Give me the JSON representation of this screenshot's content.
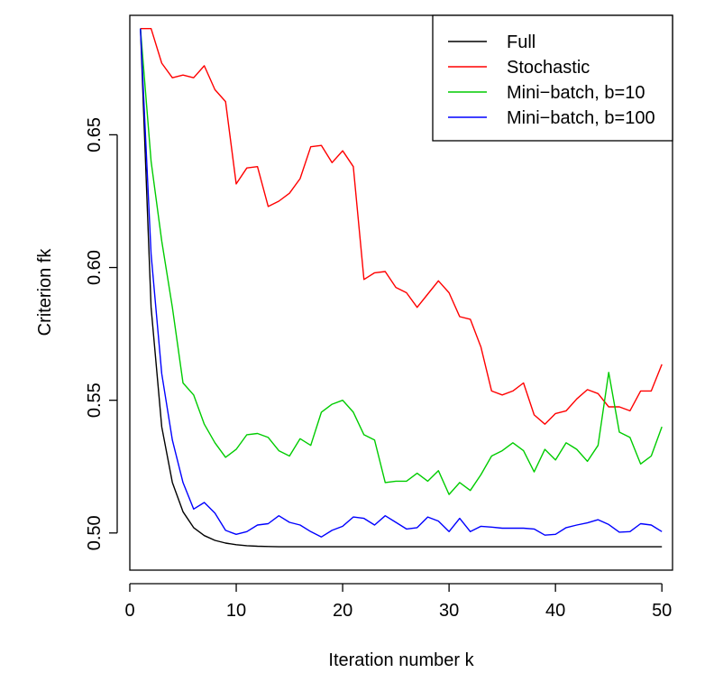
{
  "chart_data": {
    "type": "line",
    "title": "",
    "xlabel": "Iteration number k",
    "ylabel": "Criterion fk",
    "xlim": [
      0,
      51
    ],
    "ylim": [
      0.486,
      0.695
    ],
    "x_ticks": [
      0,
      10,
      20,
      30,
      40,
      50
    ],
    "y_ticks": [
      0.5,
      0.55,
      0.6,
      0.65
    ],
    "x_tick_labels": [
      "0",
      "10",
      "20",
      "30",
      "40",
      "50"
    ],
    "y_tick_labels": [
      "0.50",
      "0.55",
      "0.60",
      "0.65"
    ],
    "grid": false,
    "legend_position": "top-right",
    "x": [
      1,
      2,
      3,
      4,
      5,
      6,
      7,
      8,
      9,
      10,
      11,
      12,
      13,
      14,
      15,
      16,
      17,
      18,
      19,
      20,
      21,
      22,
      23,
      24,
      25,
      26,
      27,
      28,
      29,
      30,
      31,
      32,
      33,
      34,
      35,
      36,
      37,
      38,
      39,
      40,
      41,
      42,
      43,
      44,
      45,
      46,
      47,
      48,
      49,
      50
    ],
    "series": [
      {
        "name": "Full",
        "color": "#000000",
        "values": [
          0.69,
          0.585,
          0.54,
          0.519,
          0.508,
          0.502,
          0.499,
          0.4972,
          0.4962,
          0.4956,
          0.4952,
          0.495,
          0.4949,
          0.4948,
          0.4948,
          0.4948,
          0.4948,
          0.4948,
          0.4948,
          0.4948,
          0.4948,
          0.4948,
          0.4948,
          0.4948,
          0.4948,
          0.4948,
          0.4948,
          0.4948,
          0.4948,
          0.4948,
          0.4948,
          0.4948,
          0.4948,
          0.4948,
          0.4948,
          0.4948,
          0.4948,
          0.4948,
          0.4948,
          0.4948,
          0.4948,
          0.4948,
          0.4948,
          0.4948,
          0.4948,
          0.4948,
          0.4948,
          0.4948,
          0.4948,
          0.4948
        ]
      },
      {
        "name": "Stochastic",
        "color": "#ff0000",
        "values": [
          0.69,
          0.69,
          0.677,
          0.6715,
          0.6725,
          0.6715,
          0.676,
          0.667,
          0.6625,
          0.6315,
          0.6375,
          0.638,
          0.623,
          0.625,
          0.628,
          0.6335,
          0.6455,
          0.646,
          0.6395,
          0.644,
          0.638,
          0.5955,
          0.598,
          0.5985,
          0.5925,
          0.5905,
          0.585,
          0.59,
          0.595,
          0.5905,
          0.5815,
          0.5805,
          0.57,
          0.5535,
          0.552,
          0.5535,
          0.5565,
          0.5445,
          0.541,
          0.545,
          0.546,
          0.5505,
          0.554,
          0.5525,
          0.5475,
          0.5475,
          0.546,
          0.5535,
          0.5535,
          0.5635
        ]
      },
      {
        "name": "Mini−batch, b=10",
        "color": "#00cc00",
        "values": [
          0.69,
          0.64,
          0.61,
          0.585,
          0.5565,
          0.552,
          0.541,
          0.534,
          0.5285,
          0.5315,
          0.537,
          0.5375,
          0.536,
          0.531,
          0.529,
          0.5355,
          0.533,
          0.5455,
          0.5485,
          0.55,
          0.5455,
          0.537,
          0.535,
          0.519,
          0.5195,
          0.5195,
          0.5225,
          0.5195,
          0.5235,
          0.5145,
          0.519,
          0.516,
          0.522,
          0.529,
          0.531,
          0.534,
          0.531,
          0.523,
          0.5315,
          0.5275,
          0.534,
          0.5315,
          0.527,
          0.533,
          0.5605,
          0.538,
          0.536,
          0.526,
          0.529,
          0.54
        ]
      },
      {
        "name": "Mini−batch, b=100",
        "color": "#0000ff",
        "values": [
          0.69,
          0.605,
          0.56,
          0.535,
          0.519,
          0.509,
          0.5115,
          0.5075,
          0.501,
          0.4995,
          0.5005,
          0.503,
          0.5035,
          0.5065,
          0.504,
          0.503,
          0.5005,
          0.4985,
          0.501,
          0.5025,
          0.506,
          0.5055,
          0.503,
          0.5065,
          0.504,
          0.5015,
          0.502,
          0.506,
          0.5045,
          0.5005,
          0.5055,
          0.5005,
          0.5025,
          0.5022,
          0.5018,
          0.5018,
          0.5018,
          0.5015,
          0.4992,
          0.4995,
          0.502,
          0.503,
          0.5038,
          0.505,
          0.5032,
          0.5003,
          0.5005,
          0.5035,
          0.503,
          0.5005
        ]
      }
    ]
  }
}
